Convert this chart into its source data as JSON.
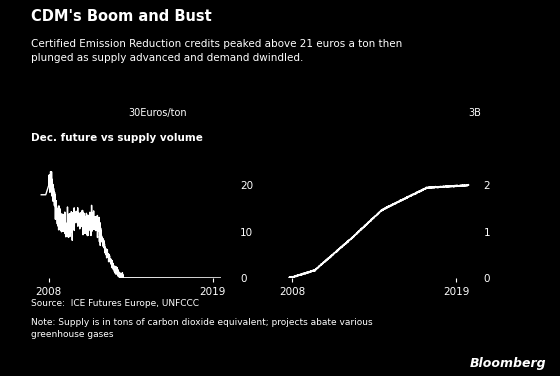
{
  "title": "CDM's Boom and Bust",
  "subtitle": "Certified Emission Reduction credits peaked above 21 euros a ton then\nplunged as supply advanced and demand dwindled.",
  "panel_label": "Dec. future vs supply volume",
  "left_ylabel_top": "30Euros/ton",
  "left_yticks": [
    0,
    10,
    20
  ],
  "left_ylim": [
    0,
    30
  ],
  "right_ylabel_top": "3B",
  "right_yticks": [
    0,
    1,
    2
  ],
  "right_ylim": [
    0,
    3
  ],
  "xmin": 2006.8,
  "xmax": 2020.5,
  "xticks": [
    2008,
    2019
  ],
  "source": "Source:  ICE Futures Europe, UNFCCC",
  "note": "Note: Supply is in tons of carbon dioxide equivalent; projects abate various\ngreenhouse gases",
  "bloomberg": "Bloomberg",
  "bg_color": "#000000",
  "text_color": "#ffffff",
  "line_color": "#ffffff"
}
